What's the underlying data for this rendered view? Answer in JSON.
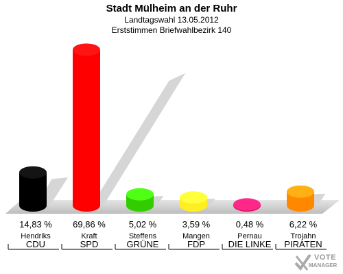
{
  "chart_data": {
    "type": "bar",
    "title": "Stadt Mülheim an der Ruhr",
    "subtitle": "Landtagswahl 13.05.2012",
    "subtitle2": "Erststimmen Briefwahlbezirk 140",
    "ylim": [
      0,
      70
    ],
    "series": [
      {
        "values": [
          14.83,
          69.86,
          5.02,
          3.59,
          0.48,
          6.22
        ]
      }
    ],
    "categories": [
      {
        "candidate": "Hendriks",
        "party": "CDU",
        "value_label": "14,83 %",
        "color": "#000000"
      },
      {
        "candidate": "Kraft",
        "party": "SPD",
        "value_label": "69,86 %",
        "color": "#ff0000"
      },
      {
        "candidate": "Steffens",
        "party": "GRÜNE",
        "value_label": "5,02 %",
        "color": "#33cc00"
      },
      {
        "candidate": "Mangen",
        "party": "FDP",
        "value_label": "3,59 %",
        "color": "#ffee22"
      },
      {
        "candidate": "Pernau",
        "party": "DIE LINKE",
        "value_label": "0,48 %",
        "color": "#dd1166"
      },
      {
        "candidate": "Trojahn",
        "party": "PIRATEN",
        "value_label": "6,22 %",
        "color": "#ff8800"
      }
    ]
  },
  "logo": {
    "line1": "VOTE",
    "line2": "MANAGER",
    "icon": "checkmark-x-icon"
  }
}
